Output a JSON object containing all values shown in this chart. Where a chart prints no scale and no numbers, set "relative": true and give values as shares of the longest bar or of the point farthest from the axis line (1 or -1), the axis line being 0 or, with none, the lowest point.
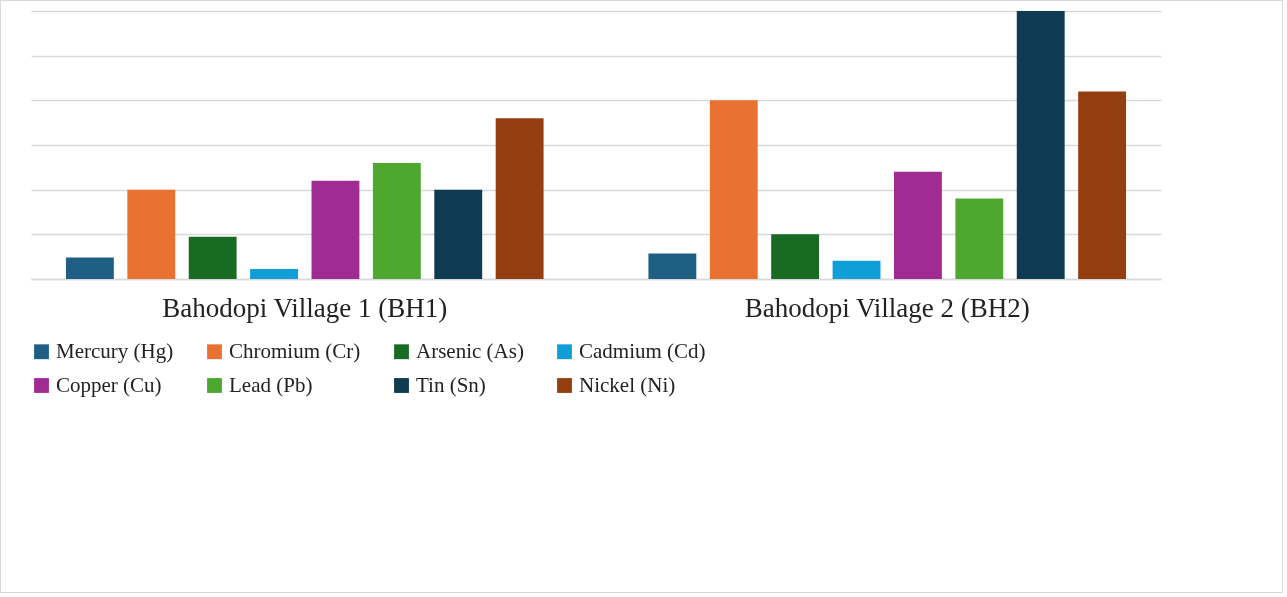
{
  "chart_data": {
    "type": "bar",
    "relative": true,
    "categories": [
      "Bahodopi Village 1 (BH1)",
      "Bahodopi Village 2 (BH2)"
    ],
    "series": [
      {
        "name": "Mercury (Hg)",
        "color": "#1f5f84",
        "values": [
          0.08,
          0.095
        ]
      },
      {
        "name": "Chromium (Cr)",
        "color": "#e97132",
        "values": [
          0.333,
          0.667
        ]
      },
      {
        "name": "Arsenic (As)",
        "color": "#196b24",
        "values": [
          0.158,
          0.167
        ]
      },
      {
        "name": "Cadmium (Cd)",
        "color": "#0f9ed5",
        "values": [
          0.037,
          0.068
        ]
      },
      {
        "name": "Copper (Cu)",
        "color": "#a02b93",
        "values": [
          0.367,
          0.4
        ]
      },
      {
        "name": "Lead (Pb)",
        "color": "#4ea72e",
        "values": [
          0.433,
          0.3
        ]
      },
      {
        "name": "Tin (Sn)",
        "color": "#0e3a52",
        "values": [
          0.333,
          1
        ]
      },
      {
        "name": "Nickel (Ni)",
        "color": "#953e0f",
        "values": [
          0.6,
          0.7
        ]
      }
    ],
    "grid": "y",
    "legend": "bottom"
  }
}
